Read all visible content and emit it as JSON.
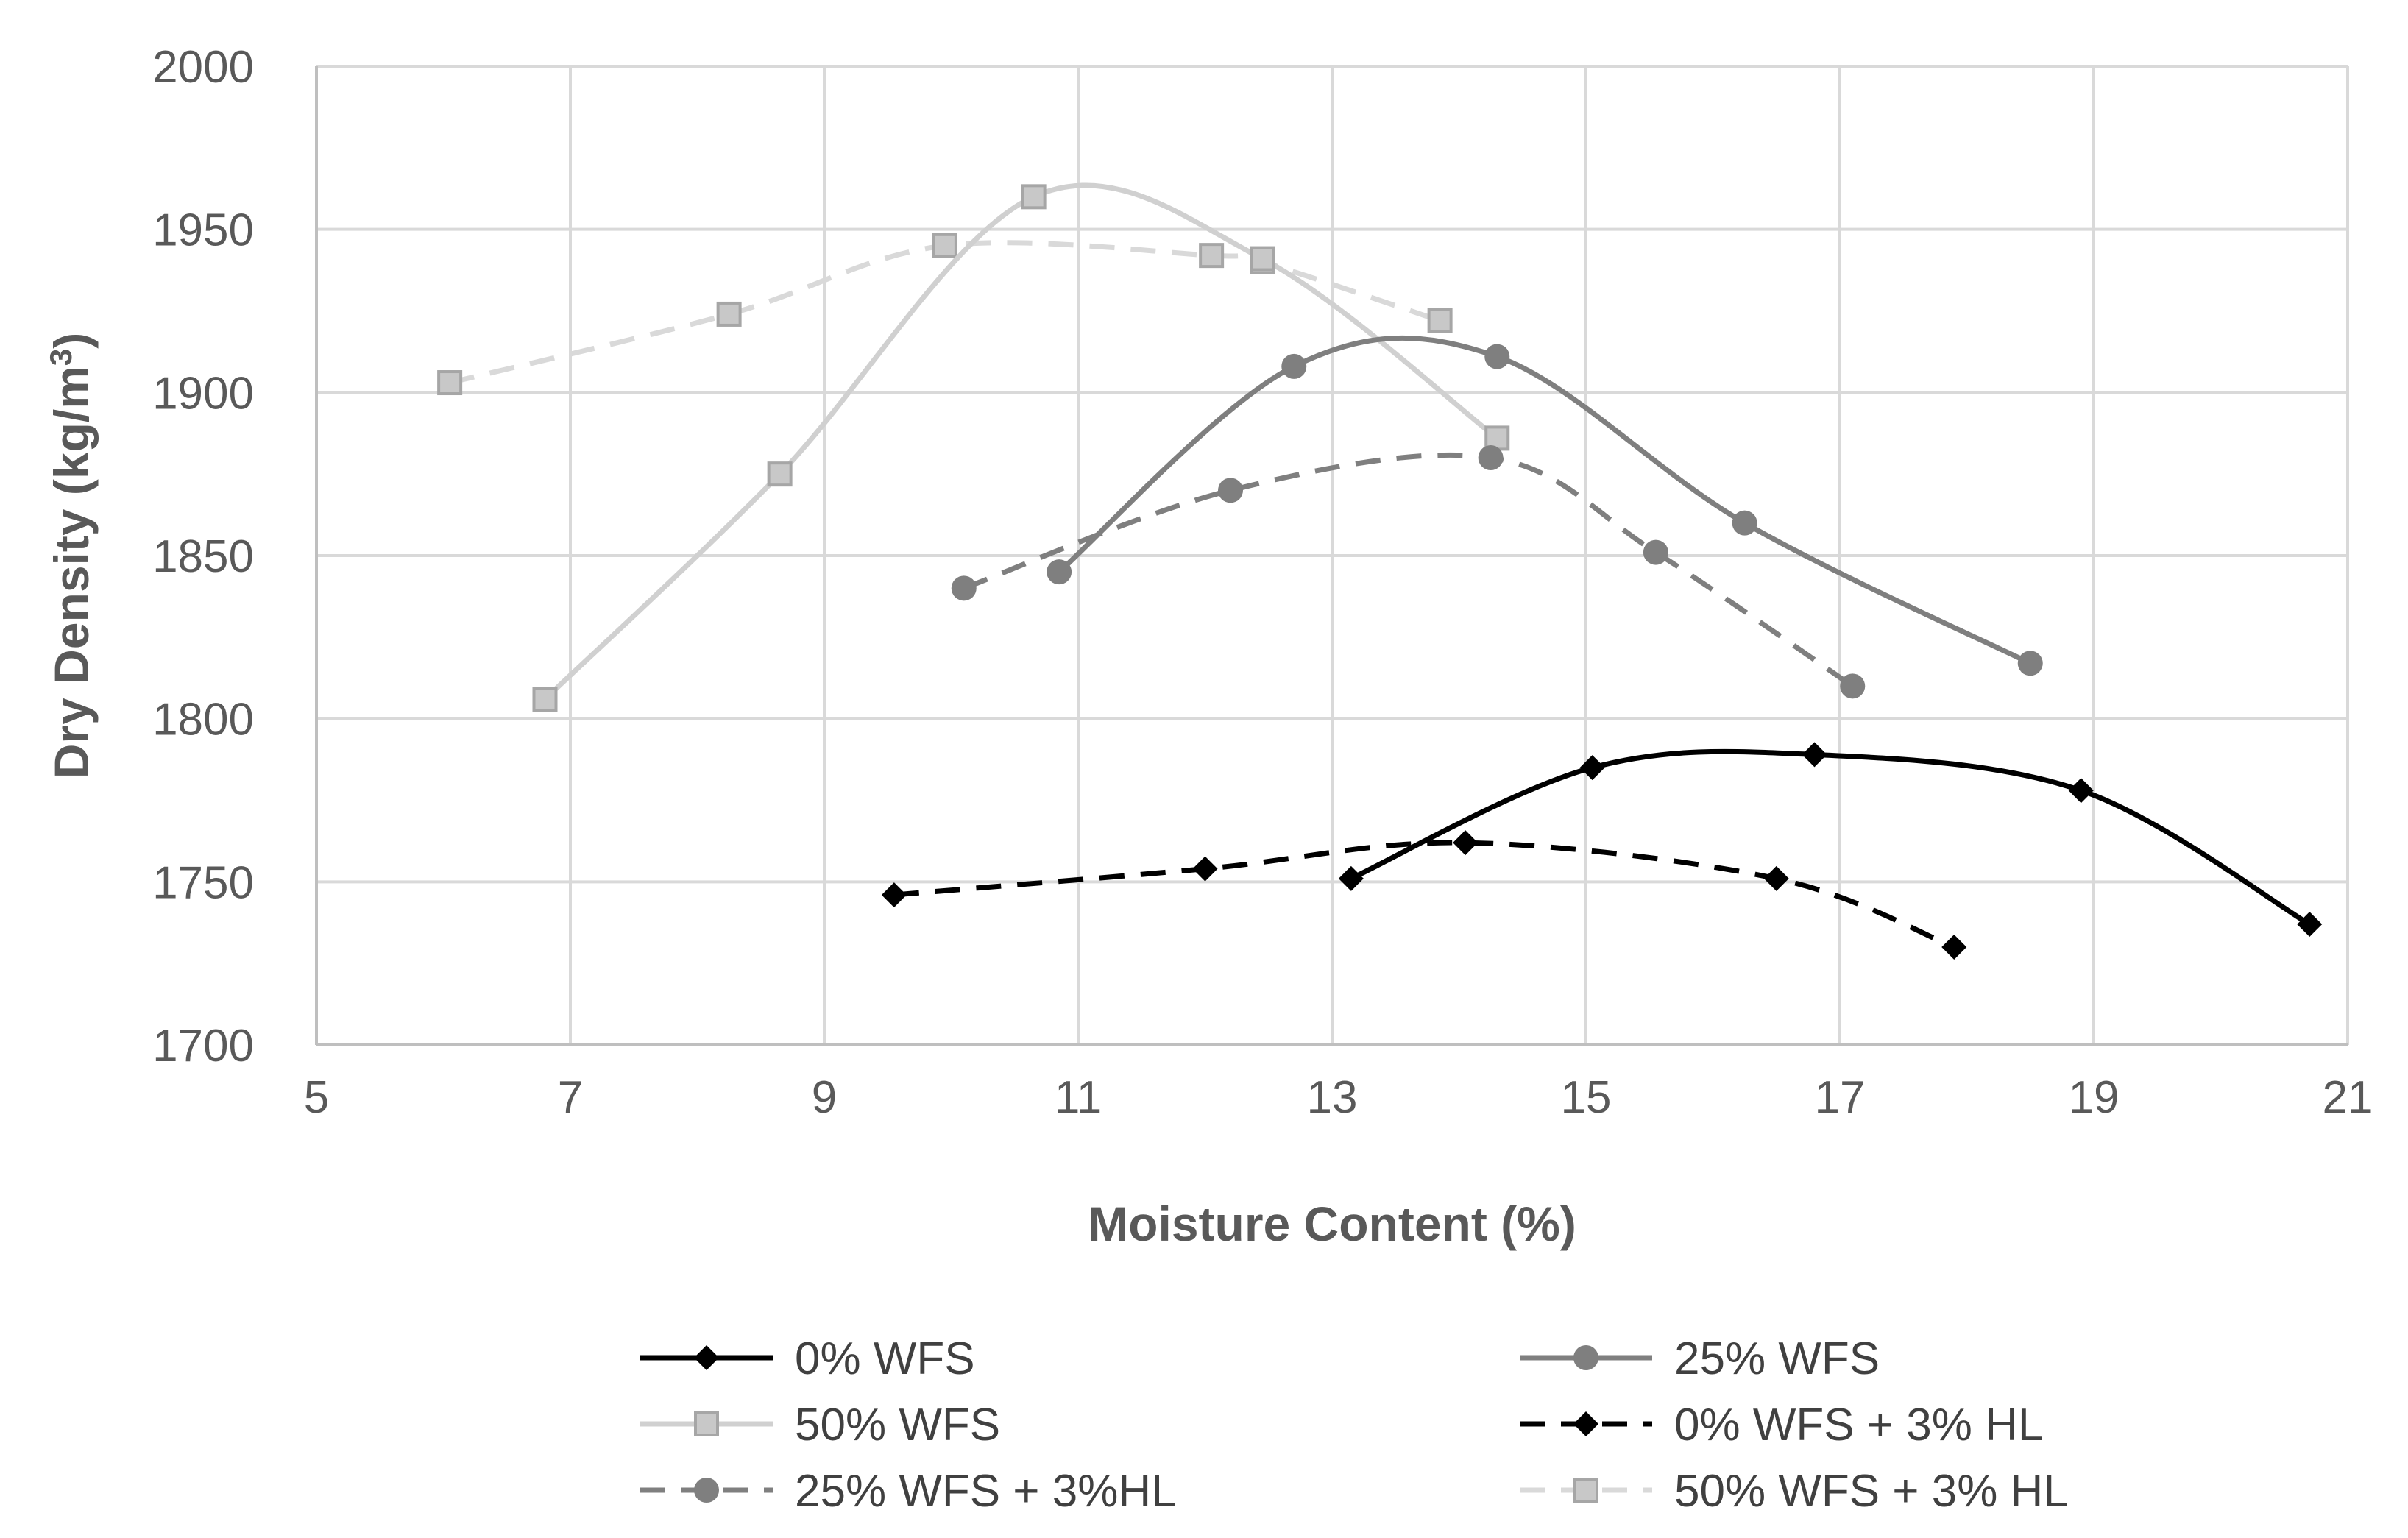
{
  "chart_data": {
    "type": "scatter",
    "title": "",
    "xlabel": "Moisture Content (%)",
    "ylabel": "Dry Density (kg/m³)",
    "xlim": [
      5,
      21
    ],
    "ylim": [
      1700,
      2000
    ],
    "xticks": [
      5,
      7,
      9,
      11,
      13,
      15,
      17,
      19,
      21
    ],
    "yticks": [
      1700,
      1750,
      1800,
      1850,
      1900,
      1950,
      2000
    ],
    "xtick_labels": [
      "5",
      "7",
      "9",
      "11",
      "13",
      "15",
      "17",
      "19",
      "21"
    ],
    "ytick_labels": [
      "1700",
      "1750",
      "1800",
      "1850",
      "1900",
      "1950",
      "2000"
    ],
    "grid": true,
    "smooth_lines": true,
    "legend_position": "bottom",
    "series": [
      {
        "name": "0% WFS",
        "color": "#000000",
        "marker": "diamond",
        "line_style": "solid",
        "x": [
          13.15,
          15.05,
          16.8,
          18.9,
          20.7
        ],
        "y": [
          1751,
          1785,
          1789,
          1778,
          1737
        ]
      },
      {
        "name": "25% WFS",
        "color": "#7f7f7f",
        "marker": "circle",
        "line_style": "solid",
        "x": [
          10.85,
          12.7,
          14.3,
          16.25,
          18.5
        ],
        "y": [
          1845,
          1908,
          1911,
          1860,
          1817
        ]
      },
      {
        "name": "50% WFS",
        "color": "#d0d0d0",
        "marker": "square",
        "line_style": "solid",
        "x": [
          6.8,
          8.65,
          10.65,
          12.45,
          14.3
        ],
        "y": [
          1806,
          1875,
          1960,
          1941,
          1886
        ]
      },
      {
        "name": "0% WFS + 3% HL",
        "color": "#000000",
        "marker": "diamond",
        "line_style": "dashed",
        "x": [
          9.55,
          12.0,
          14.05,
          16.5,
          17.9
        ],
        "y": [
          1746,
          1754,
          1762,
          1751,
          1730
        ]
      },
      {
        "name": "25% WFS + 3%HL",
        "color": "#7f7f7f",
        "marker": "circle",
        "line_style": "dashed",
        "x": [
          10.1,
          12.2,
          14.25,
          15.55,
          17.1
        ],
        "y": [
          1840,
          1870,
          1880,
          1851,
          1810
        ]
      },
      {
        "name": "50% WFS + 3% HL",
        "color": "#d9d9d9",
        "marker": "square",
        "line_style": "dashed",
        "x": [
          6.05,
          8.25,
          9.95,
          12.05,
          12.45,
          13.85
        ],
        "y": [
          1903,
          1924,
          1945,
          1942,
          1940,
          1922
        ]
      }
    ]
  }
}
